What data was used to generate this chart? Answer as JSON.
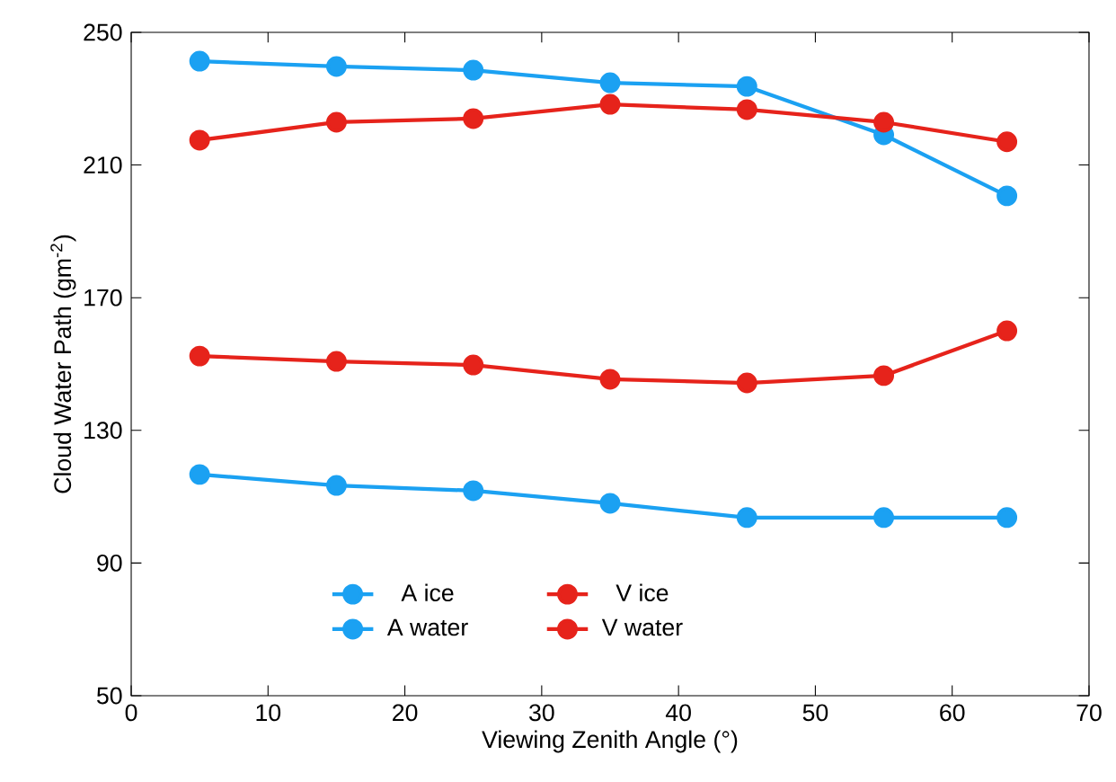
{
  "chart_data": {
    "type": "line",
    "xlabel": "Viewing Zenith Angle (°)",
    "ylabel": "Cloud Water Path (gm$^{-2}$)",
    "x": [
      5,
      15,
      25,
      35,
      45,
      55,
      64
    ],
    "series": [
      {
        "name": "A ice",
        "color": "#1ba1f2",
        "values": [
          241.3,
          239.7,
          238.6,
          234.8,
          233.7,
          219.1,
          200.7
        ]
      },
      {
        "name": "V ice",
        "color": "#e6231b",
        "values": [
          217.5,
          222.9,
          224.0,
          228.3,
          226.7,
          222.9,
          217.0
        ]
      },
      {
        "name": "A water",
        "color": "#1ba1f2",
        "values": [
          116.7,
          113.4,
          111.8,
          108.0,
          103.7,
          103.7,
          103.7
        ]
      },
      {
        "name": "V water",
        "color": "#e6231b",
        "values": [
          152.4,
          150.8,
          149.7,
          145.4,
          144.3,
          146.5,
          160.0
        ]
      }
    ],
    "xlim": [
      0,
      70
    ],
    "ylim": [
      50,
      250
    ],
    "xticks": [
      0,
      10,
      20,
      30,
      40,
      50,
      60,
      70
    ],
    "yticks": [
      50,
      90,
      130,
      170,
      210,
      250
    ],
    "grid": false,
    "legend": "bottom left",
    "marker": "circle",
    "line_style": "solid"
  }
}
